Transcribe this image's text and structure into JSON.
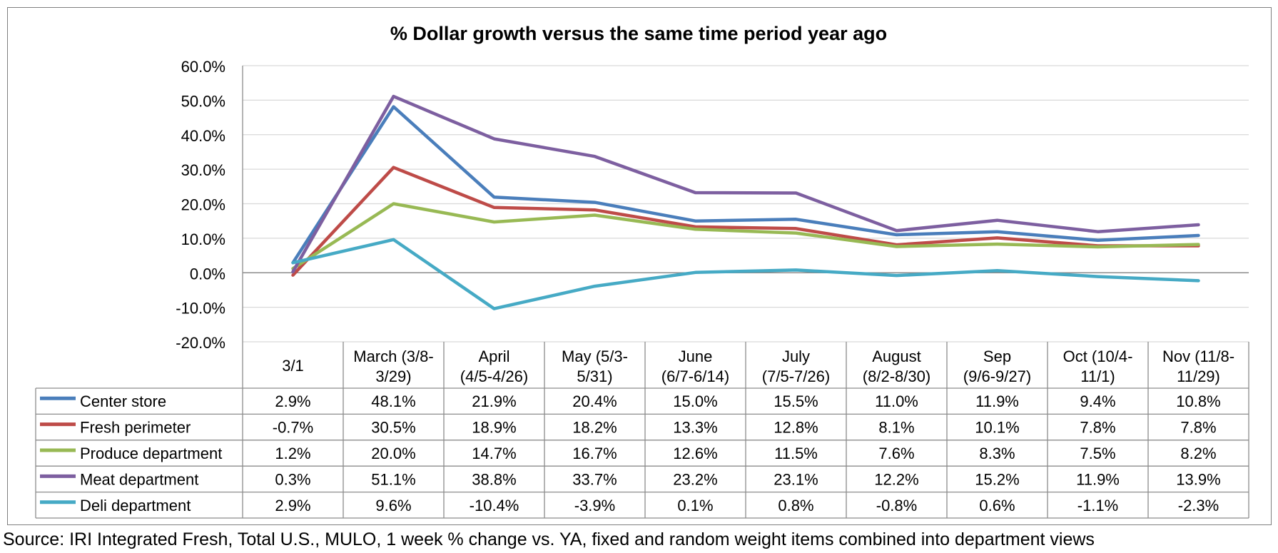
{
  "chart_data": {
    "type": "line",
    "title": "% Dollar growth versus the same time period year ago",
    "categories": [
      [
        "3/1"
      ],
      [
        "March (3/8-",
        "3/29)"
      ],
      [
        "April",
        "(4/5-4/26)"
      ],
      [
        "May (5/3-",
        "5/31)"
      ],
      [
        "June",
        "(6/7-6/14)"
      ],
      [
        "July",
        "(7/5-7/26)"
      ],
      [
        "August",
        "(8/2-8/30)"
      ],
      [
        "Sep",
        "(9/6-9/27)"
      ],
      [
        "Oct (10/4-",
        "11/1)"
      ],
      [
        "Nov (11/8-",
        "11/29)"
      ]
    ],
    "ylim": [
      -20,
      60
    ],
    "yticks": [
      "60.0%",
      "50.0%",
      "40.0%",
      "30.0%",
      "20.0%",
      "10.0%",
      "0.0%",
      "-10.0%",
      "-20.0%"
    ],
    "grid": true,
    "legend": "data-table",
    "series": [
      {
        "name": "Center store",
        "color": "#4a7ebb",
        "values": [
          2.9,
          48.1,
          21.9,
          20.4,
          15.0,
          15.5,
          11.0,
          11.9,
          9.4,
          10.8
        ],
        "labels": [
          "2.9%",
          "48.1%",
          "21.9%",
          "20.4%",
          "15.0%",
          "15.5%",
          "11.0%",
          "11.9%",
          "9.4%",
          "10.8%"
        ]
      },
      {
        "name": "Fresh perimeter",
        "color": "#be4b48",
        "values": [
          -0.7,
          30.5,
          18.9,
          18.2,
          13.3,
          12.8,
          8.1,
          10.1,
          7.8,
          7.8
        ],
        "labels": [
          "-0.7%",
          "30.5%",
          "18.9%",
          "18.2%",
          "13.3%",
          "12.8%",
          "8.1%",
          "10.1%",
          "7.8%",
          "7.8%"
        ]
      },
      {
        "name": "Produce department",
        "color": "#98b954",
        "values": [
          1.2,
          20.0,
          14.7,
          16.7,
          12.6,
          11.5,
          7.6,
          8.3,
          7.5,
          8.2
        ],
        "labels": [
          "1.2%",
          "20.0%",
          "14.7%",
          "16.7%",
          "12.6%",
          "11.5%",
          "7.6%",
          "8.3%",
          "7.5%",
          "8.2%"
        ]
      },
      {
        "name": "Meat department",
        "color": "#7d5fa0",
        "values": [
          0.3,
          51.1,
          38.8,
          33.7,
          23.2,
          23.1,
          12.2,
          15.2,
          11.9,
          13.9
        ],
        "labels": [
          "0.3%",
          "51.1%",
          "38.8%",
          "33.7%",
          "23.2%",
          "23.1%",
          "12.2%",
          "15.2%",
          "11.9%",
          "13.9%"
        ]
      },
      {
        "name": "Deli department",
        "color": "#46aac5",
        "values": [
          2.9,
          9.6,
          -10.4,
          -3.9,
          0.1,
          0.8,
          -0.8,
          0.6,
          -1.1,
          -2.3
        ],
        "labels": [
          "2.9%",
          "9.6%",
          "-10.4%",
          "-3.9%",
          "0.1%",
          "0.8%",
          "-0.8%",
          "0.6%",
          "-1.1%",
          "-2.3%"
        ]
      }
    ]
  },
  "source_note": "Source: IRI Integrated Fresh, Total U.S., MULO, 1 week % change vs. YA, fixed and random weight items combined into department views"
}
